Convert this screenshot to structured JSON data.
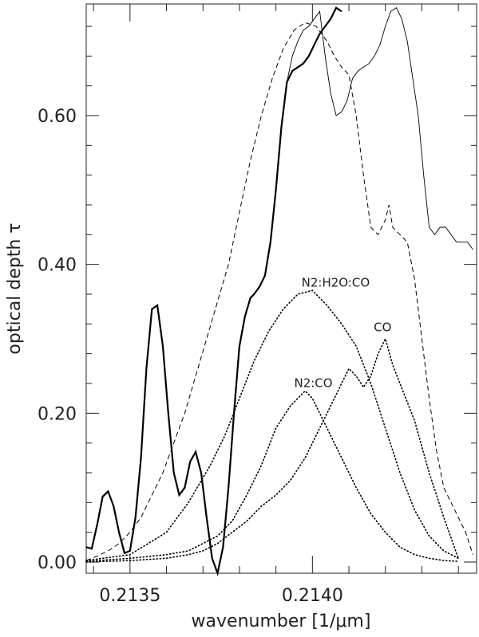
{
  "chart_data": {
    "type": "line",
    "title": "",
    "xlabel": "wavenumber [1/μm]",
    "ylabel": "optical depth τ",
    "xlim": [
      0.21338,
      0.21445
    ],
    "ylim": [
      -0.015,
      0.75
    ],
    "grid": false,
    "legend": "none",
    "x_ticks": [
      {
        "value": 0.2135,
        "label": "0.2135"
      },
      {
        "value": 0.214,
        "label": "0.2140"
      }
    ],
    "y_ticks": [
      {
        "value": 0.0,
        "label": "0.00"
      },
      {
        "value": 0.2,
        "label": "0.20"
      },
      {
        "value": 0.4,
        "label": "0.40"
      },
      {
        "value": 0.6,
        "label": "0.60"
      }
    ],
    "series": [
      {
        "style": "solid-thick",
        "x": [
          0.21338,
          0.213395,
          0.21341,
          0.213425,
          0.21344,
          0.213455,
          0.21347,
          0.213485,
          0.2135,
          0.213515,
          0.21353,
          0.213545,
          0.21356,
          0.213575,
          0.21359,
          0.213605,
          0.21362,
          0.213635,
          0.21365,
          0.213665,
          0.21368,
          0.213695,
          0.21371,
          0.213725,
          0.21374,
          0.213755,
          0.21377,
          0.213785,
          0.2138,
          0.213815,
          0.21383,
          0.21384,
          0.213855,
          0.21387,
          0.213885,
          0.2139,
          0.213915,
          0.21393,
          0.213945,
          0.21396,
          0.213975,
          0.21399,
          0.214005,
          0.21402,
          0.214035,
          0.21405,
          0.214065,
          0.21408
        ],
        "y": [
          0.02,
          0.018,
          0.05,
          0.088,
          0.095,
          0.075,
          0.04,
          0.012,
          0.015,
          0.06,
          0.14,
          0.26,
          0.34,
          0.345,
          0.29,
          0.2,
          0.12,
          0.09,
          0.1,
          0.135,
          0.148,
          0.12,
          0.06,
          0.005,
          -0.015,
          0.02,
          0.1,
          0.2,
          0.29,
          0.33,
          0.355,
          0.36,
          0.37,
          0.385,
          0.43,
          0.5,
          0.585,
          0.645,
          0.66,
          0.665,
          0.67,
          0.68,
          0.695,
          0.71,
          0.72,
          0.73,
          0.745,
          0.74
        ]
      },
      {
        "style": "solid-thin",
        "x": [
          0.21384,
          0.213855,
          0.21387,
          0.213885,
          0.2139,
          0.213915,
          0.21393,
          0.213945,
          0.21396,
          0.213975,
          0.21399,
          0.214005,
          0.21402,
          0.214035,
          0.21405,
          0.214065,
          0.21408,
          0.214095,
          0.21411,
          0.214125,
          0.21414,
          0.214155,
          0.21417,
          0.214185,
          0.2142,
          0.214215,
          0.21423,
          0.214245,
          0.21426,
          0.214275,
          0.21429,
          0.214305,
          0.21432,
          0.214335,
          0.21435,
          0.214365,
          0.21438,
          0.214395,
          0.21441,
          0.214425,
          0.21444
        ],
        "y": [
          0.36,
          0.37,
          0.385,
          0.43,
          0.5,
          0.58,
          0.645,
          0.68,
          0.7,
          0.715,
          0.72,
          0.73,
          0.74,
          0.68,
          0.63,
          0.6,
          0.605,
          0.62,
          0.65,
          0.66,
          0.665,
          0.67,
          0.68,
          0.695,
          0.72,
          0.74,
          0.745,
          0.73,
          0.7,
          0.65,
          0.6,
          0.52,
          0.45,
          0.44,
          0.45,
          0.45,
          0.44,
          0.43,
          0.43,
          0.43,
          0.42
        ]
      },
      {
        "style": "dashed",
        "x": [
          0.21338,
          0.21341,
          0.21344,
          0.21347,
          0.2135,
          0.21353,
          0.21356,
          0.21359,
          0.21362,
          0.21365,
          0.21368,
          0.21371,
          0.21374,
          0.21377,
          0.2138,
          0.21383,
          0.21386,
          0.21389,
          0.21392,
          0.21395,
          0.21398,
          0.21401,
          0.21404,
          0.21406,
          0.21408,
          0.2141,
          0.21412,
          0.21414,
          0.21416,
          0.21418,
          0.2142,
          0.21421,
          0.21422,
          0.21424,
          0.21426,
          0.21428,
          0.2143,
          0.21432,
          0.21434,
          0.21436,
          0.21438,
          0.2144,
          0.21442,
          0.21444
        ],
        "y": [
          0.002,
          0.008,
          0.015,
          0.025,
          0.04,
          0.06,
          0.09,
          0.12,
          0.16,
          0.2,
          0.25,
          0.3,
          0.35,
          0.4,
          0.47,
          0.54,
          0.6,
          0.65,
          0.69,
          0.715,
          0.725,
          0.72,
          0.7,
          0.68,
          0.665,
          0.655,
          0.6,
          0.52,
          0.45,
          0.44,
          0.46,
          0.48,
          0.45,
          0.44,
          0.43,
          0.38,
          0.3,
          0.22,
          0.15,
          0.1,
          0.08,
          0.06,
          0.04,
          0.01
        ]
      },
      {
        "style": "dotted",
        "name": "N2:H2O:CO",
        "x": [
          0.21338,
          0.2135,
          0.2136,
          0.21366,
          0.21372,
          0.21376,
          0.2138,
          0.21384,
          0.21388,
          0.21392,
          0.21396,
          0.214,
          0.21404,
          0.21408,
          0.21412,
          0.21416,
          0.2142,
          0.21424,
          0.21428,
          0.21432,
          0.21436,
          0.2144
        ],
        "y": [
          0.002,
          0.01,
          0.04,
          0.08,
          0.13,
          0.17,
          0.22,
          0.27,
          0.31,
          0.34,
          0.36,
          0.365,
          0.345,
          0.32,
          0.29,
          0.24,
          0.18,
          0.12,
          0.07,
          0.035,
          0.015,
          0.005
        ]
      },
      {
        "style": "dotted",
        "name": "N2:CO",
        "x": [
          0.21338,
          0.2135,
          0.2136,
          0.21366,
          0.2137,
          0.21374,
          0.21378,
          0.21382,
          0.21386,
          0.2139,
          0.21394,
          0.21398,
          0.214,
          0.21402,
          0.21404,
          0.21408,
          0.21412,
          0.21416,
          0.2142,
          0.21424,
          0.21428,
          0.21432,
          0.21436,
          0.2144
        ],
        "y": [
          0.001,
          0.005,
          0.01,
          0.015,
          0.025,
          0.035,
          0.055,
          0.09,
          0.13,
          0.18,
          0.21,
          0.23,
          0.22,
          0.2,
          0.18,
          0.14,
          0.1,
          0.065,
          0.04,
          0.02,
          0.01,
          0.005,
          0.002,
          0.001
        ]
      },
      {
        "style": "dotted",
        "name": "CO",
        "x": [
          0.21338,
          0.2135,
          0.2136,
          0.21366,
          0.2137,
          0.21374,
          0.21378,
          0.21382,
          0.21386,
          0.2139,
          0.21394,
          0.21398,
          0.21402,
          0.21406,
          0.2141,
          0.21412,
          0.21414,
          0.21416,
          0.21418,
          0.2142,
          0.21422,
          0.21424,
          0.21428,
          0.21432,
          0.21436,
          0.2144
        ],
        "y": [
          0.0,
          0.002,
          0.005,
          0.01,
          0.015,
          0.025,
          0.04,
          0.055,
          0.075,
          0.09,
          0.11,
          0.14,
          0.18,
          0.22,
          0.26,
          0.25,
          0.235,
          0.25,
          0.28,
          0.3,
          0.265,
          0.24,
          0.19,
          0.12,
          0.06,
          0.005
        ]
      }
    ],
    "annotations": [
      {
        "text": "N2:H2O:CO",
        "x": 0.21397,
        "y": 0.37
      },
      {
        "text": "CO",
        "x": 0.214168,
        "y": 0.31
      },
      {
        "text": "N2:CO",
        "x": 0.21395,
        "y": 0.235
      }
    ]
  }
}
